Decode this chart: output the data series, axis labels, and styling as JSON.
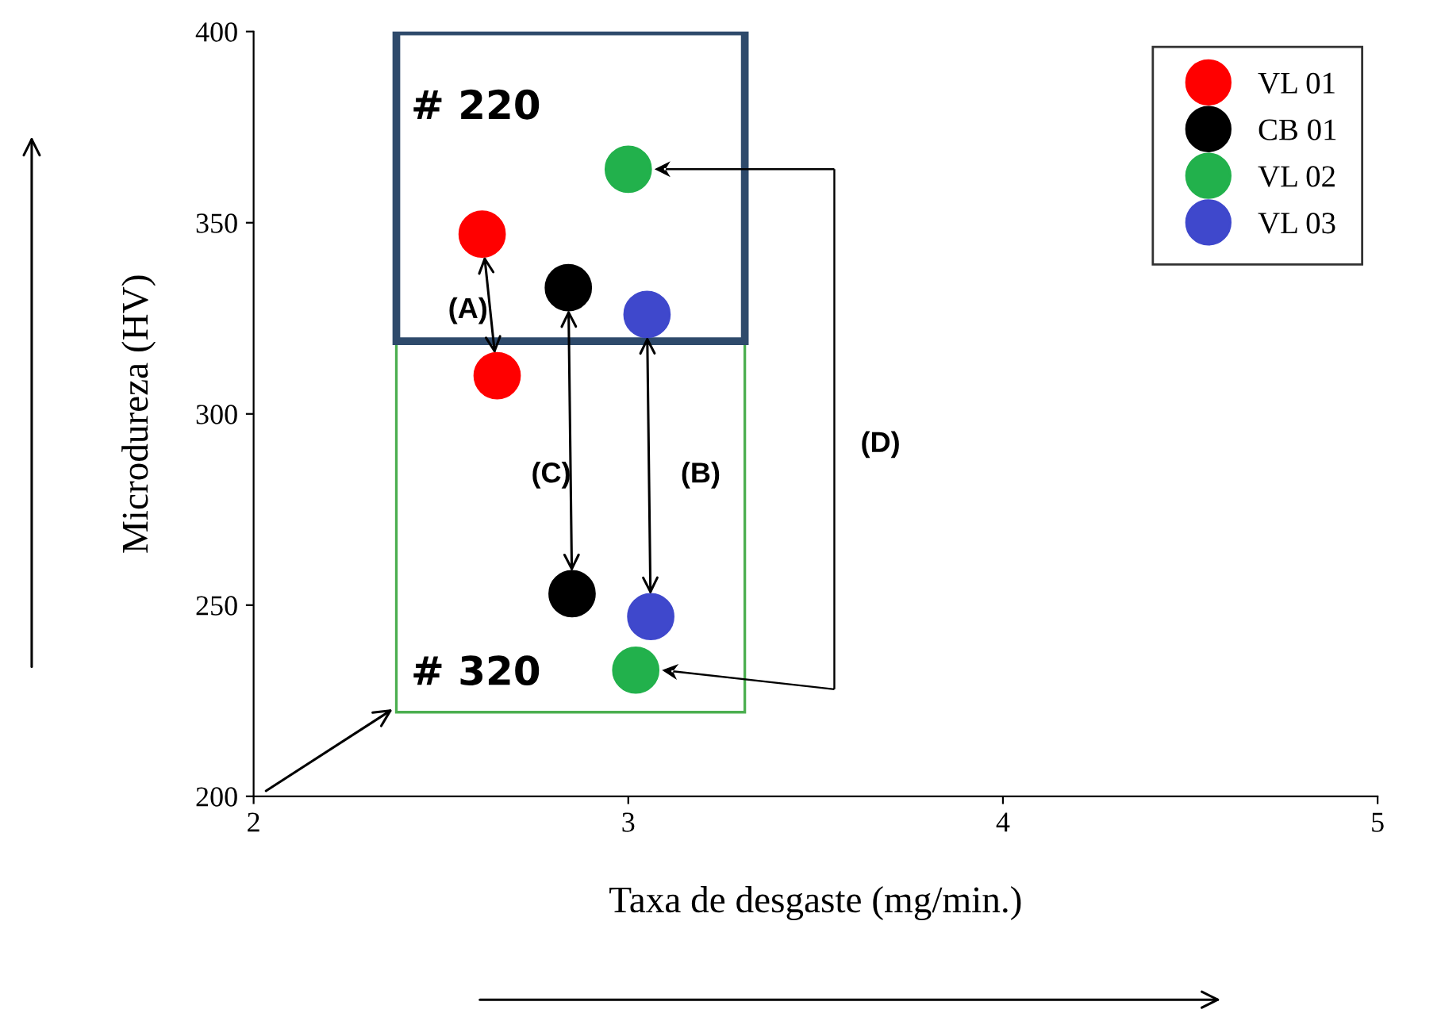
{
  "chart_data": {
    "type": "scatter",
    "xlabel": "Taxa de desgaste (mg/min.)",
    "ylabel": "Microdureza (HV)",
    "xlim": [
      2,
      5
    ],
    "ylim": [
      200,
      400
    ],
    "xticks": [
      2,
      3,
      4,
      5
    ],
    "yticks": [
      200,
      250,
      300,
      350,
      400
    ],
    "grid": false,
    "legend": "top right",
    "marker": "circle",
    "series": [
      {
        "name": "VL 01",
        "color": "#ff0000",
        "x": [
          2.61,
          2.65
        ],
        "values": [
          347,
          310
        ]
      },
      {
        "name": "CB 01",
        "color": "#000000",
        "x": [
          2.84,
          2.85
        ],
        "values": [
          333,
          253
        ]
      },
      {
        "name": "VL 02",
        "color": "#22b14c",
        "x": [
          3.0,
          3.02
        ],
        "values": [
          364,
          233
        ]
      },
      {
        "name": "VL 03",
        "color": "#3f48cc",
        "x": [
          3.05,
          3.06
        ],
        "values": [
          326,
          247
        ]
      }
    ],
    "annotations": [
      "# 220",
      "# 320",
      "(A)",
      "(C)",
      "(B)",
      "(D)"
    ]
  }
}
